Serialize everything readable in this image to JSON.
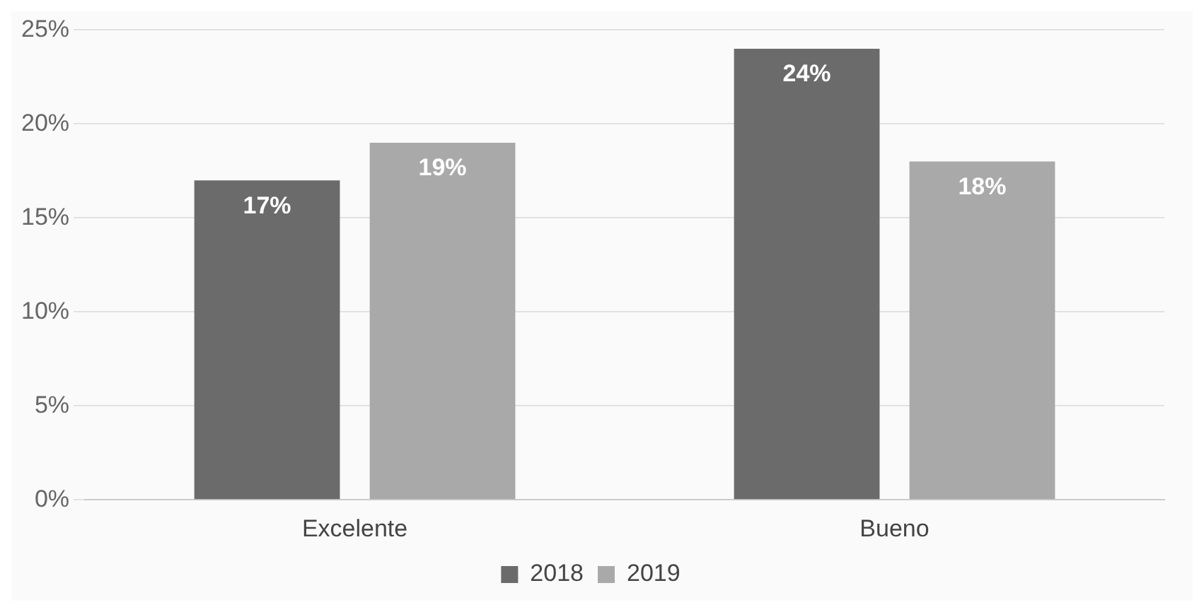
{
  "chart_data": {
    "type": "bar",
    "categories": [
      "Excelente",
      "Bueno"
    ],
    "series": [
      {
        "name": "2018",
        "color": "#6b6b6b",
        "values": [
          17,
          24
        ],
        "value_labels": [
          "17%",
          "24%"
        ]
      },
      {
        "name": "2019",
        "color": "#a9a9a9",
        "values": [
          19,
          18
        ],
        "value_labels": [
          "19%",
          "18%"
        ]
      }
    ],
    "ylim": [
      0,
      25
    ],
    "yticks": [
      {
        "value": 0,
        "label": "0%"
      },
      {
        "value": 5,
        "label": "5%"
      },
      {
        "value": 10,
        "label": "10%"
      },
      {
        "value": 15,
        "label": "15%"
      },
      {
        "value": 20,
        "label": "20%"
      },
      {
        "value": 25,
        "label": "25%"
      }
    ],
    "grid": "y",
    "legend": "bottom"
  }
}
